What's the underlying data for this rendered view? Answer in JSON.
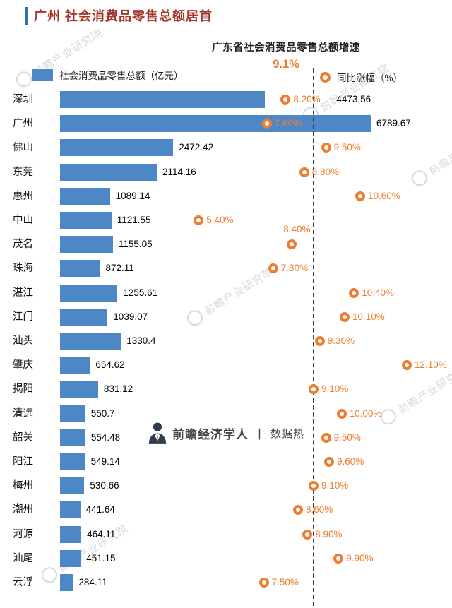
{
  "title": "广州 社会消费品零售总额居首",
  "annotation": {
    "line1": "广东省社会消费品零售总额增速",
    "value": "9.1%"
  },
  "legend": {
    "bars": "社会消费品零售总额（亿元）",
    "markers": "同比涨幅（%）"
  },
  "watermark": {
    "brand": "前瞻经济学人",
    "divider": "丨",
    "suffix": "数据热",
    "diagonal": "前瞻产业研究院"
  },
  "colors": {
    "bar": "#4d87c6",
    "accent_orange": "#ed7d31",
    "title": "#a5342a",
    "accent_bar": "#2e75b6",
    "dashed_line": "#3f3f3f"
  },
  "chart_data": {
    "type": "bar",
    "orientation": "horizontal",
    "title": "广州 社会消费品零售总额居首",
    "categories": [
      "深圳",
      "广州",
      "佛山",
      "东莞",
      "惠州",
      "中山",
      "茂名",
      "珠海",
      "湛江",
      "江门",
      "汕头",
      "肇庆",
      "揭阳",
      "清远",
      "韶关",
      "阳江",
      "梅州",
      "潮州",
      "河源",
      "汕尾",
      "云浮"
    ],
    "series": [
      {
        "name": "社会消费品零售总额（亿元）",
        "values": [
          4473.56,
          6789.67,
          2472.42,
          2114.16,
          1089.14,
          1121.55,
          1155.05,
          872.11,
          1255.61,
          1039.07,
          1330.4,
          654.62,
          831.12,
          550.7,
          554.48,
          549.14,
          530.66,
          441.64,
          464.11,
          451.15,
          284.11
        ]
      },
      {
        "name": "同比涨幅（%）",
        "values": [
          8.2,
          7.6,
          9.5,
          8.8,
          10.6,
          5.4,
          8.4,
          7.8,
          10.4,
          10.1,
          9.3,
          12.1,
          9.1,
          10.0,
          9.5,
          9.6,
          9.1,
          8.6,
          8.9,
          9.9,
          7.5
        ]
      }
    ],
    "value_labels": [
      "4473.56",
      "6789.67",
      "2472.42",
      "2114.16",
      "1089.14",
      "1121.55",
      "1155.05",
      "872.11",
      "1255.61",
      "1039.07",
      "1330.4",
      "654.62",
      "831.12",
      "550.7",
      "554.48",
      "549.14",
      "530.66",
      "441.64",
      "464.11",
      "451.15",
      "284.11"
    ],
    "pct_labels": [
      "8.20%",
      "7.60%",
      "9.50%",
      "8.80%",
      "10.60%",
      "5.40%",
      "8.40%",
      "7.80%",
      "10.40%",
      "10.10%",
      "9.30%",
      "12.10%",
      "9.10%",
      "10.00%",
      "9.50%",
      "9.60%",
      "9.10%",
      "8.60%",
      "8.90%",
      "9.90%",
      "7.50%"
    ],
    "reference_line": {
      "label": "9.1%",
      "value": 9.1,
      "note": "广东省社会消费品零售总额增速"
    },
    "xlim_bars": [
      0,
      6789.67
    ],
    "xlim_pct": [
      5.4,
      12.1
    ],
    "grid": false,
    "legend_position": "top",
    "layout": {
      "pct_label_above_rows": [
        6
      ]
    }
  }
}
